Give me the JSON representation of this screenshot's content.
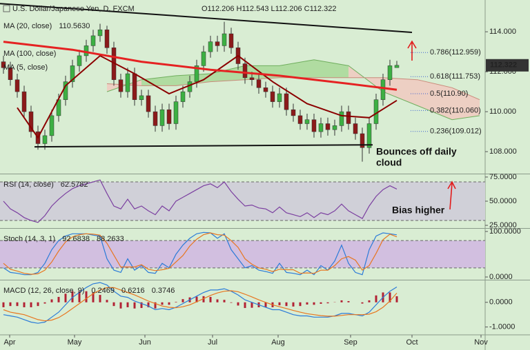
{
  "chart_data": [
    {
      "type": "candlestick",
      "title": "U.S. Dollar/Japanese Yen, D, FXCM",
      "subtitle": "O112.206 H112.543 L112.206 C112.322",
      "categories": [
        null,
        null,
        null,
        null,
        null,
        null,
        null,
        null,
        null,
        null,
        null,
        null,
        null,
        null,
        null,
        null,
        null,
        null,
        null,
        null,
        null,
        null,
        null,
        null,
        null,
        null,
        null,
        null,
        null,
        null,
        null,
        null,
        null,
        null,
        null,
        null,
        null,
        null,
        null,
        null,
        null,
        null,
        null,
        null,
        null,
        null,
        null,
        null,
        null,
        null,
        null,
        null,
        null,
        null,
        null,
        null,
        null,
        null
      ],
      "open": [
        112.5,
        112.2,
        111.6,
        111.0,
        110.0,
        109.0,
        108.4,
        108.8,
        109.8,
        110.6,
        111.5,
        112.3,
        112.8,
        113.3,
        113.8,
        114.1,
        113.2,
        111.6,
        111.0,
        111.9,
        110.6,
        110.8,
        110.0,
        109.3,
        110.1,
        109.4,
        110.5,
        111.0,
        111.5,
        112.3,
        113.0,
        113.5,
        113.3,
        113.9,
        113.2,
        112.4,
        111.7,
        111.6,
        111.2,
        111.0,
        110.5,
        110.9,
        110.1,
        109.8,
        109.4,
        109.6,
        109.0,
        109.4,
        109.1,
        109.3,
        110.0,
        109.4,
        108.9,
        108.2,
        109.4,
        110.6,
        111.6,
        112.206
      ],
      "high": [
        112.8,
        112.5,
        111.9,
        111.3,
        110.3,
        109.3,
        109.1,
        110.1,
        110.9,
        111.8,
        112.6,
        113.1,
        113.6,
        114.1,
        114.4,
        114.3,
        113.5,
        111.9,
        112.2,
        112.2,
        111.1,
        111.1,
        110.3,
        110.4,
        110.4,
        110.8,
        111.3,
        111.8,
        112.6,
        113.3,
        113.8,
        113.8,
        114.5,
        114.2,
        113.5,
        112.7,
        112.0,
        111.9,
        111.5,
        111.3,
        111.2,
        111.2,
        110.4,
        110.1,
        109.9,
        109.9,
        109.7,
        109.7,
        109.6,
        110.3,
        110.3,
        109.7,
        109.2,
        109.7,
        110.9,
        111.9,
        112.6,
        112.543
      ],
      "low": [
        111.9,
        111.3,
        110.7,
        109.7,
        108.7,
        108.1,
        108.1,
        108.5,
        109.5,
        110.3,
        111.2,
        112.0,
        112.5,
        113.0,
        113.5,
        112.9,
        111.3,
        110.7,
        110.7,
        110.3,
        110.3,
        109.7,
        109.0,
        109.0,
        109.1,
        109.1,
        110.2,
        110.7,
        111.2,
        112.0,
        112.7,
        113.0,
        113.0,
        112.9,
        112.1,
        111.4,
        111.3,
        110.9,
        110.7,
        110.2,
        110.2,
        109.8,
        109.5,
        109.1,
        109.1,
        108.7,
        108.7,
        108.8,
        108.8,
        109.0,
        109.1,
        108.6,
        107.5,
        107.9,
        109.1,
        110.3,
        111.3,
        112.206
      ],
      "close": [
        112.2,
        111.6,
        111.0,
        110.0,
        109.0,
        108.4,
        108.8,
        109.8,
        110.6,
        111.5,
        112.3,
        112.8,
        113.3,
        113.8,
        114.1,
        113.2,
        111.6,
        111.0,
        111.9,
        110.6,
        110.8,
        110.0,
        109.3,
        110.1,
        109.4,
        110.5,
        111.0,
        111.5,
        112.3,
        113.0,
        113.5,
        113.3,
        113.9,
        113.2,
        112.4,
        111.7,
        111.6,
        111.2,
        111.0,
        110.5,
        110.9,
        110.1,
        109.8,
        109.4,
        109.6,
        109.0,
        109.4,
        109.1,
        109.3,
        110.0,
        109.4,
        108.9,
        108.2,
        109.4,
        110.6,
        111.6,
        112.3,
        112.322
      ],
      "up_color": "#3cb043",
      "down_color": "#8b1a1a",
      "last_price": {
        "value": 112.322,
        "label": "112.322"
      },
      "overlays": [
        {
          "name": "MA (20, close)",
          "value_label": "110.5630",
          "color": "#8b0000",
          "width": 2,
          "x": [
            2,
            5,
            9,
            14,
            19,
            24,
            29,
            34,
            39,
            44,
            49,
            53,
            57
          ],
          "values": [
            110.2,
            108.7,
            111.3,
            112.8,
            111.9,
            110.9,
            111.6,
            112.8,
            111.5,
            110.4,
            109.8,
            109.7,
            110.563
          ]
        },
        {
          "name": "MA (100, close)",
          "color": "#e52222",
          "width": 3,
          "x": [
            0,
            10,
            20,
            30,
            40,
            50,
            57
          ],
          "values": [
            113.5,
            113.1,
            112.5,
            112.1,
            111.8,
            111.4,
            111.1
          ]
        }
      ],
      "extra_labels": [
        "MA (5, close)"
      ],
      "cloud": {
        "x": [
          15,
          20,
          25,
          30,
          35,
          40,
          45,
          50,
          55,
          60,
          65,
          69
        ],
        "span_a": [
          111.0,
          111.6,
          111.8,
          111.9,
          112.3,
          112.3,
          112.6,
          112.3,
          111.0,
          110.3,
          109.6,
          109.8
        ],
        "span_b": [
          111.4,
          111.3,
          111.3,
          111.5,
          111.6,
          111.7,
          111.7,
          111.7,
          111.7,
          111.6,
          111.2,
          110.6
        ],
        "up_color": "#a8d898",
        "down_color": "#f0c9bf"
      },
      "trendlines": [
        {
          "x": [
            -0.5,
            59.2
          ],
          "values": [
            115.41,
            113.97
          ]
        },
        {
          "x": [
            4.5,
            53.5
          ],
          "values": [
            108.24,
            108.34
          ]
        }
      ],
      "fib_levels": [
        {
          "label": "0.786(112.959)",
          "value": 112.959
        },
        {
          "label": "0.618(111.753)",
          "value": 111.753
        },
        {
          "label": "0.5(110.90)",
          "value": 110.9
        },
        {
          "label": "0.382(110.060)",
          "value": 110.06
        },
        {
          "label": "0.236(109.012)",
          "value": 109.012
        }
      ],
      "annotation": [
        "Bounces off daily",
        "cloud"
      ],
      "xlim": [
        -0.5,
        69.8
      ],
      "ylim": [
        106.9,
        115.59
      ],
      "yticks": [
        {
          "value": 114,
          "label": "114.000"
        },
        {
          "value": 112,
          "label": "112.000"
        },
        {
          "value": 110,
          "label": "110.000"
        },
        {
          "value": 108,
          "label": "108.000"
        }
      ]
    },
    {
      "type": "line",
      "label": "RSI (14, close)",
      "annotation": "Bias higher",
      "band": [
        30,
        70
      ],
      "band_color": "#d0d0d8",
      "series": [
        {
          "color": "#7b3fa0",
          "last_label": "62.5782",
          "values": [
            50,
            42,
            38,
            33,
            30,
            28,
            35,
            45,
            52,
            58,
            63,
            66,
            68,
            70,
            72,
            58,
            45,
            42,
            52,
            42,
            45,
            40,
            36,
            45,
            40,
            50,
            54,
            58,
            62,
            66,
            68,
            64,
            70,
            60,
            52,
            45,
            46,
            43,
            42,
            38,
            44,
            38,
            36,
            34,
            38,
            33,
            38,
            36,
            40,
            47,
            40,
            36,
            32,
            45,
            55,
            62,
            66,
            62.5782
          ]
        }
      ],
      "xlim": [
        -0.5,
        69.8
      ],
      "ylim": [
        22.9,
        77.1
      ],
      "yticks": [
        {
          "value": 75,
          "label": "75.0000"
        },
        {
          "value": 50,
          "label": "50.0000"
        },
        {
          "value": 25,
          "label": "25.0000"
        }
      ]
    },
    {
      "type": "line",
      "label": "Stoch (14, 3, 1)",
      "band": [
        20,
        80
      ],
      "band_color": "#d2bfe0",
      "series": [
        {
          "color": "#2b7bd8",
          "last_label": "92.6838",
          "values": [
            20,
            10,
            8,
            5,
            5,
            10,
            30,
            60,
            80,
            90,
            95,
            95,
            95,
            92,
            90,
            40,
            15,
            10,
            40,
            15,
            25,
            10,
            8,
            30,
            20,
            50,
            70,
            85,
            95,
            98,
            97,
            85,
            95,
            60,
            40,
            20,
            25,
            15,
            12,
            8,
            30,
            10,
            8,
            5,
            15,
            5,
            25,
            15,
            35,
            70,
            30,
            10,
            5,
            60,
            90,
            97,
            95,
            92.6838
          ]
        },
        {
          "color": "#e8761f",
          "last_label": "88.2633",
          "values": [
            30,
            17,
            13,
            8,
            6,
            7,
            15,
            33,
            57,
            77,
            88,
            93,
            95,
            94,
            92,
            74,
            48,
            22,
            22,
            22,
            27,
            17,
            14,
            16,
            19,
            33,
            47,
            68,
            83,
            93,
            97,
            93,
            92,
            80,
            65,
            40,
            28,
            20,
            17,
            12,
            17,
            16,
            16,
            8,
            9,
            8,
            15,
            15,
            25,
            40,
            45,
            37,
            15,
            25,
            52,
            82,
            94,
            88.2633
          ]
        }
      ],
      "xlim": [
        -0.5,
        69.8
      ],
      "ylim": [
        -4.5,
        104.5
      ],
      "yticks": [
        {
          "value": 100,
          "label": "100.0000"
        },
        {
          "value": 0,
          "label": "0.0000"
        }
      ]
    },
    {
      "type": "macd",
      "label": "MACD (12, 26, close, 9)",
      "histogram": {
        "color": "#b22234",
        "last_label": "0.2469",
        "values": [
          -0.2,
          -0.15,
          -0.15,
          -0.2,
          -0.2,
          -0.15,
          -0.05,
          0.12,
          0.22,
          0.35,
          0.45,
          0.45,
          0.45,
          0.4,
          0.3,
          0.1,
          -0.15,
          -0.25,
          -0.2,
          -0.25,
          -0.23,
          -0.2,
          -0.25,
          -0.1,
          -0.1,
          0.02,
          0.13,
          0.2,
          0.23,
          0.25,
          0.22,
          0.12,
          0.1,
          -0.02,
          -0.13,
          -0.23,
          -0.22,
          -0.2,
          -0.2,
          -0.2,
          -0.12,
          -0.15,
          -0.17,
          -0.15,
          -0.09,
          -0.1,
          -0.06,
          -0.04,
          0.01,
          0.08,
          0.05,
          0,
          -0.05,
          0.08,
          0.28,
          0.4,
          0.4,
          0.2469
        ]
      },
      "series": [
        {
          "color": "#2b7bd8",
          "last_label": "0.6216",
          "values": [
            -0.5,
            -0.55,
            -0.6,
            -0.7,
            -0.8,
            -0.85,
            -0.8,
            -0.6,
            -0.4,
            -0.1,
            0.2,
            0.4,
            0.6,
            0.75,
            0.8,
            0.7,
            0.45,
            0.25,
            0.2,
            0.05,
            -0.05,
            -0.15,
            -0.3,
            -0.25,
            -0.3,
            -0.2,
            -0.05,
            0.1,
            0.25,
            0.4,
            0.5,
            0.5,
            0.55,
            0.45,
            0.3,
            0.1,
            0,
            -0.1,
            -0.2,
            -0.3,
            -0.3,
            -0.4,
            -0.5,
            -0.55,
            -0.55,
            -0.6,
            -0.6,
            -0.6,
            -0.55,
            -0.45,
            -0.45,
            -0.5,
            -0.55,
            -0.4,
            -0.1,
            0.2,
            0.45,
            0.6216
          ]
        },
        {
          "color": "#e8761f",
          "last_label": "0.3746",
          "values": [
            -0.3,
            -0.4,
            -0.45,
            -0.5,
            -0.6,
            -0.7,
            -0.75,
            -0.72,
            -0.62,
            -0.45,
            -0.25,
            -0.05,
            0.15,
            0.35,
            0.5,
            0.6,
            0.6,
            0.5,
            0.4,
            0.3,
            0.18,
            0.05,
            -0.05,
            -0.15,
            -0.2,
            -0.22,
            -0.18,
            -0.1,
            0.02,
            0.15,
            0.28,
            0.38,
            0.45,
            0.47,
            0.43,
            0.33,
            0.22,
            0.1,
            0,
            -0.1,
            -0.18,
            -0.25,
            -0.33,
            -0.4,
            -0.46,
            -0.5,
            -0.54,
            -0.56,
            -0.56,
            -0.53,
            -0.5,
            -0.5,
            -0.5,
            -0.48,
            -0.38,
            -0.2,
            0.05,
            0.3746
          ]
        }
      ],
      "xlim": [
        -0.5,
        69.8
      ],
      "ylim": [
        -1.29,
        0.86
      ],
      "yticks": [
        {
          "value": 0,
          "label": "0.0000"
        },
        {
          "value": -1,
          "label": "-1.0000"
        }
      ],
      "xticks": [
        {
          "value": 0.9,
          "label": "Apr"
        },
        {
          "value": 10.3,
          "label": "May"
        },
        {
          "value": 20.5,
          "label": "Jun"
        },
        {
          "value": 30.3,
          "label": "Jul"
        },
        {
          "value": 39.8,
          "label": "Aug"
        },
        {
          "value": 50.3,
          "label": "Sep"
        },
        {
          "value": 59.2,
          "label": "Oct"
        },
        {
          "value": 69.2,
          "label": "Nov"
        }
      ]
    }
  ]
}
